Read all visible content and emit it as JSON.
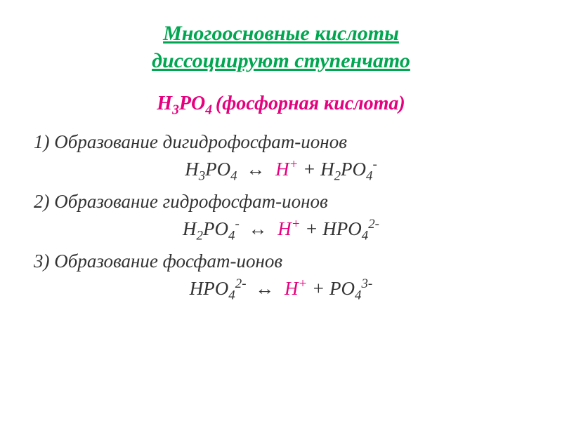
{
  "colors": {
    "title": "#00a650",
    "subtitle": "#e6007e",
    "body_text": "#333333",
    "h_ion": "#e6007e",
    "background": "#ffffff"
  },
  "typography": {
    "title_fontsize": 30,
    "subtitle_fontsize": 28,
    "body_fontsize": 27,
    "font_family": "Georgia, Times New Roman, serif",
    "italic": true
  },
  "title_line1": "Многоосновные кислоты",
  "title_line2": "диссоциируют ступенчато",
  "subtitle_prefix": "H",
  "subtitle_sub1": "3",
  "subtitle_mid": "PO",
  "subtitle_sub2": "4 ",
  "subtitle_rest": "(фосфорная кислота)",
  "step1_label": "1) Образование дигидрофосфат-ионов",
  "step2_label": "2) Образование гидрофосфат-ионов",
  "step3_label": "3) Образование фосфат-ионов",
  "eq": {
    "H": "H",
    "PO": "PO",
    "HPO": "HPO",
    "plus": " + ",
    "arrow": "↔",
    "sub2": "2",
    "sub3": "3",
    "sub4": "4",
    "sup_plus": "+",
    "sup_minus": "-",
    "sup_2minus": "2-",
    "sup_3minus": "3-"
  }
}
